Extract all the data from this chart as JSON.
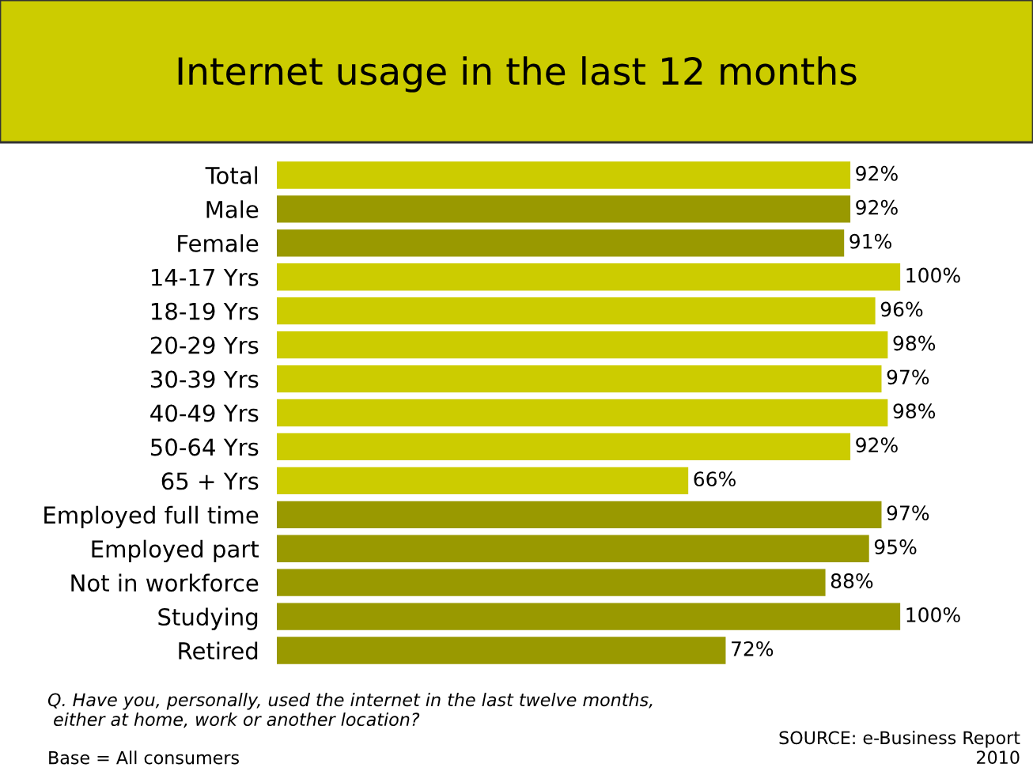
{
  "chart_data": {
    "type": "bar",
    "orientation": "horizontal",
    "title": "Internet usage in the last 12 months",
    "categories": [
      "Total",
      "Male",
      "Female",
      "14-17 Yrs",
      "18-19 Yrs",
      "20-29 Yrs",
      "30-39 Yrs",
      "40-49 Yrs",
      "50-64 Yrs",
      "65 + Yrs",
      "Employed full time",
      "Employed part",
      "Not in workforce",
      "Studying",
      "Retired"
    ],
    "values": [
      92,
      92,
      91,
      100,
      96,
      98,
      97,
      98,
      92,
      66,
      97,
      95,
      88,
      100,
      72
    ],
    "value_labels": [
      "92%",
      "92%",
      "91%",
      "100%",
      "96%",
      "98%",
      "97%",
      "98%",
      "92%",
      "66%",
      "97%",
      "95%",
      "88%",
      "100%",
      "72%"
    ],
    "colors": [
      "#cccc00",
      "#999900",
      "#999900",
      "#cccc00",
      "#cccc00",
      "#cccc00",
      "#cccc00",
      "#cccc00",
      "#cccc00",
      "#cccc00",
      "#999900",
      "#999900",
      "#999900",
      "#999900",
      "#999900"
    ],
    "grid": false,
    "legend": false,
    "annotations": [
      "Q. Have you, personally, used the internet in the last twelve months,\n either at home, work or another location?",
      "SOURCE: e-Business Report\n2010",
      "Base = All consumers"
    ]
  }
}
